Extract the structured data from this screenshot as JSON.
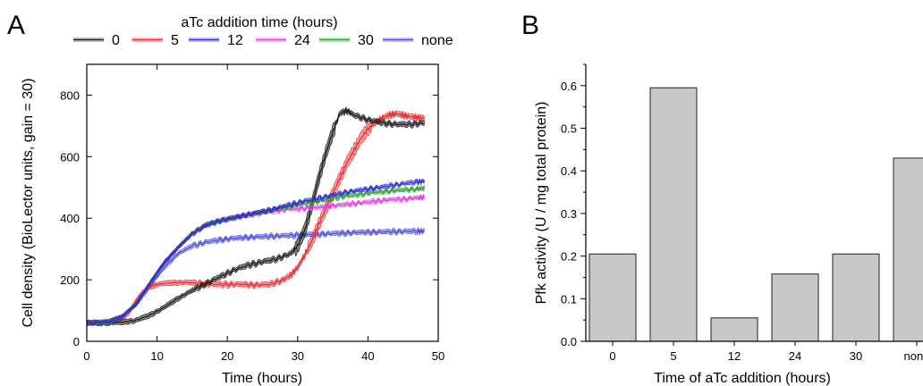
{
  "panels": {
    "a": "A",
    "b": "B"
  },
  "colors": {
    "0": "#1a1a1a",
    "5": "#e8262b",
    "12": "#2b2bcf",
    "24": "#e040e0",
    "30": "#2e9e2e",
    "none": "#4a4ad8",
    "bar_fill": "#c8c8c8",
    "bar_stroke": "#222222"
  },
  "chart_data": [
    {
      "type": "line",
      "panel": "A",
      "legend_title": "aTc addition time (hours)",
      "xlabel": "Time (hours)",
      "ylabel": "Cell density (BioLector units, gain = 30)",
      "xlim": [
        0,
        50
      ],
      "ylim": [
        0,
        900
      ],
      "xticks": [
        0,
        10,
        20,
        30,
        40,
        50
      ],
      "yticks": [
        0,
        200,
        400,
        600,
        800
      ],
      "legend_position": "top",
      "series": [
        {
          "name": "0",
          "band": 12,
          "band_rise": 40,
          "x": [
            0,
            3,
            5,
            7,
            9,
            11,
            13,
            15,
            17,
            19,
            21,
            23,
            25,
            27,
            29,
            30,
            31,
            32,
            33,
            34,
            35,
            36,
            37,
            38,
            40,
            42,
            44,
            46,
            48
          ],
          "y": [
            60,
            60,
            62,
            68,
            85,
            110,
            140,
            165,
            188,
            210,
            232,
            248,
            258,
            268,
            285,
            310,
            360,
            440,
            530,
            610,
            680,
            740,
            750,
            735,
            720,
            710,
            705,
            705,
            710
          ]
        },
        {
          "name": "5",
          "band": 12,
          "band_rise": 35,
          "x": [
            0,
            3,
            5,
            6,
            7,
            8,
            9,
            10,
            12,
            14,
            16,
            18,
            20,
            22,
            24,
            26,
            28,
            29,
            30,
            31,
            32,
            33,
            34,
            35,
            36,
            37,
            38,
            39,
            40,
            41,
            42,
            43,
            44,
            45,
            46,
            47,
            48
          ],
          "y": [
            60,
            62,
            75,
            95,
            130,
            160,
            178,
            185,
            190,
            192,
            188,
            185,
            185,
            185,
            183,
            185,
            200,
            215,
            240,
            280,
            325,
            380,
            430,
            480,
            530,
            580,
            620,
            660,
            690,
            710,
            725,
            735,
            740,
            735,
            730,
            728,
            725
          ]
        },
        {
          "name": "12",
          "band": 8,
          "x": [
            0,
            3,
            5,
            7,
            9,
            11,
            13,
            15,
            17,
            19,
            21,
            23,
            25,
            27,
            29,
            31,
            33,
            35,
            37,
            39,
            41,
            43,
            45,
            47,
            48
          ],
          "y": [
            60,
            63,
            80,
            120,
            190,
            255,
            305,
            350,
            378,
            392,
            402,
            412,
            422,
            432,
            445,
            456,
            465,
            475,
            485,
            492,
            498,
            505,
            512,
            518,
            520
          ]
        },
        {
          "name": "24",
          "band": 8,
          "x": [
            0,
            3,
            5,
            7,
            9,
            11,
            13,
            15,
            17,
            19,
            21,
            23,
            25,
            27,
            29,
            31,
            33,
            35,
            37,
            39,
            41,
            43,
            45,
            47,
            48
          ],
          "y": [
            60,
            63,
            80,
            120,
            190,
            255,
            305,
            350,
            378,
            392,
            402,
            410,
            418,
            425,
            430,
            432,
            435,
            440,
            445,
            450,
            455,
            460,
            462,
            466,
            468
          ]
        },
        {
          "name": "30",
          "band": 8,
          "x": [
            0,
            3,
            5,
            7,
            9,
            11,
            13,
            15,
            17,
            19,
            21,
            23,
            25,
            27,
            29,
            31,
            33,
            35,
            37,
            39,
            41,
            43,
            45,
            47,
            48
          ],
          "y": [
            60,
            63,
            80,
            120,
            190,
            255,
            305,
            350,
            378,
            392,
            402,
            412,
            420,
            430,
            440,
            448,
            455,
            465,
            472,
            478,
            484,
            488,
            492,
            495,
            497
          ]
        },
        {
          "name": "none",
          "band": 10,
          "x": [
            0,
            3,
            5,
            7,
            9,
            11,
            13,
            15,
            17,
            19,
            21,
            23,
            25,
            27,
            29,
            31,
            33,
            35,
            37,
            39,
            41,
            43,
            45,
            47,
            48
          ],
          "y": [
            60,
            63,
            80,
            118,
            180,
            240,
            285,
            310,
            322,
            330,
            335,
            338,
            340,
            342,
            344,
            346,
            348,
            350,
            352,
            354,
            355,
            356,
            357,
            358,
            358
          ]
        }
      ]
    },
    {
      "type": "bar",
      "panel": "B",
      "xlabel": "Time of aTc addition (hours)",
      "ylabel": "Pfk activity (U / mg total protein)",
      "categories": [
        "0",
        "5",
        "12",
        "24",
        "30",
        "none"
      ],
      "values": [
        0.205,
        0.595,
        0.055,
        0.158,
        0.205,
        0.43
      ],
      "ylim": [
        0,
        0.65
      ],
      "yticks": [
        "0.0",
        "0.1",
        "0.2",
        "0.3",
        "0.4",
        "0.5",
        "0.6"
      ]
    }
  ]
}
